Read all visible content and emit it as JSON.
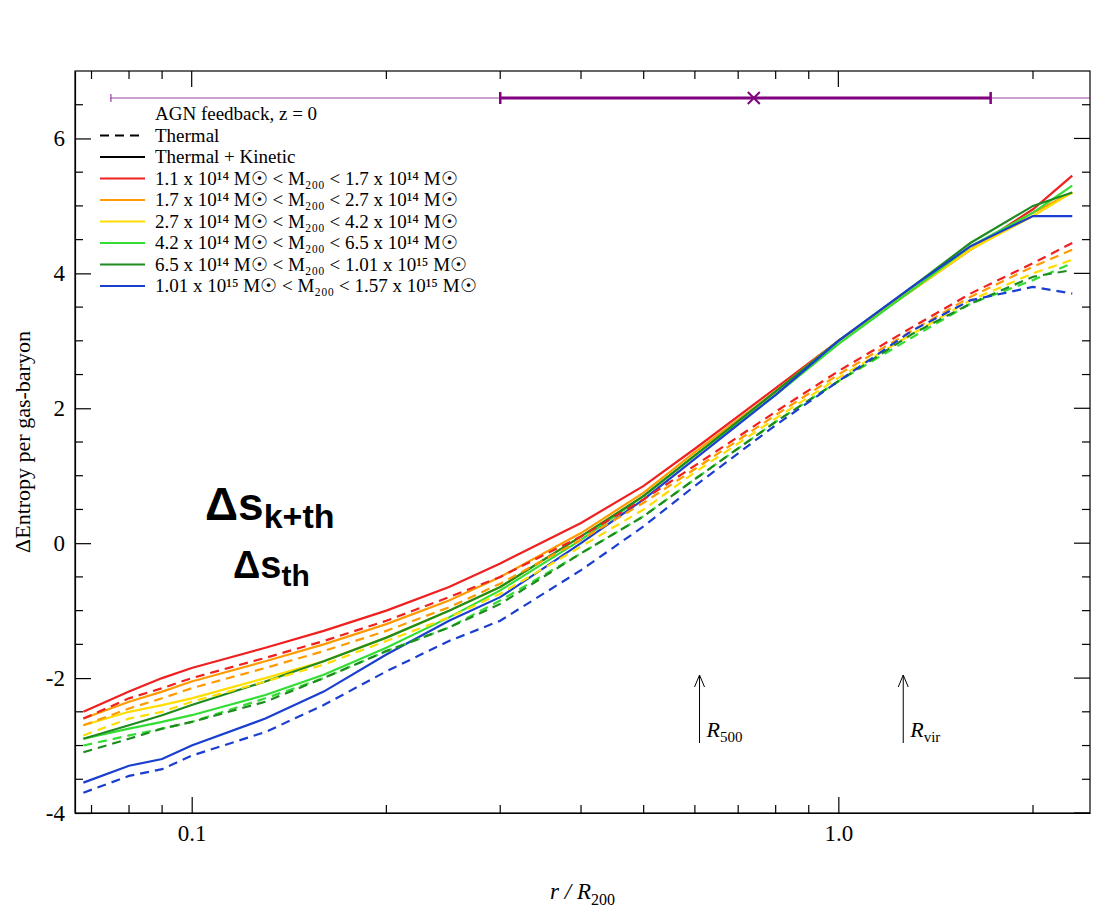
{
  "chart_data": {
    "type": "line",
    "log": "x",
    "legend": "upper left",
    "xlabel": {
      "text": "r / R",
      "sub": "200"
    },
    "ylabel": "ΔEntropy per gas-baryon",
    "legend_title": "AGN feedback, z = 0",
    "line_styles": [
      {
        "name": "Thermal",
        "line_style": "dashed"
      },
      {
        "name": "Thermal + Kinetic",
        "line_style": "solid"
      }
    ],
    "xlim": [
      0.066,
      2.45
    ],
    "ylim": [
      -4,
      7
    ],
    "xticks": [
      0.1,
      {
        "value": 1,
        "label": "1.0"
      }
    ],
    "yticks": [
      -4,
      -2,
      0,
      2,
      4,
      6
    ],
    "xminor_ticks": [
      0.07,
      0.08,
      0.09,
      0.2,
      0.3,
      0.4,
      0.5,
      0.6,
      0.7,
      0.8,
      0.9,
      2
    ],
    "yminor_ticks": [
      -3.5,
      -3,
      -2.5,
      -1.5,
      -1,
      -0.5,
      0.5,
      1,
      1.5,
      2.5,
      3,
      3.5,
      4.5,
      5,
      5.5,
      6.5
    ],
    "x": [
      0.068,
      0.08,
      0.09,
      0.1,
      0.13,
      0.16,
      0.2,
      0.25,
      0.3,
      0.4,
      0.5,
      0.6,
      0.8,
      1.0,
      1.3,
      1.6,
      2.0,
      2.3
    ],
    "series": [
      {
        "name": "1.1 x 10¹⁴ M☉ < M₂₀₀ < 1.7 x 10¹⁴ M☉",
        "color": "#ee2020",
        "line_style": "solid",
        "values": [
          -2.5,
          -2.2,
          -2.0,
          -1.85,
          -1.55,
          -1.3,
          -1.0,
          -0.65,
          -0.3,
          0.3,
          0.85,
          1.4,
          2.3,
          3.0,
          3.75,
          4.35,
          4.95,
          5.45
        ]
      },
      {
        "name": "1.7 x 10¹⁴ M☉ < M₂₀₀ < 2.7 x 10¹⁴ M☉",
        "color": "#ff9a00",
        "line_style": "solid",
        "values": [
          -2.6,
          -2.35,
          -2.2,
          -2.05,
          -1.75,
          -1.5,
          -1.2,
          -0.85,
          -0.5,
          0.15,
          0.75,
          1.35,
          2.25,
          3.0,
          3.75,
          4.35,
          4.9,
          5.2
        ]
      },
      {
        "name": "2.7 x 10¹⁴ M☉ < M₂₀₀ < 4.2 x 10¹⁴ M☉",
        "color": "#ffdd00",
        "line_style": "solid",
        "values": [
          -2.7,
          -2.5,
          -2.4,
          -2.3,
          -2.0,
          -1.75,
          -1.4,
          -1.0,
          -0.65,
          0.1,
          0.7,
          1.3,
          2.25,
          3.0,
          3.75,
          4.35,
          4.85,
          5.2
        ]
      },
      {
        "name": "4.2 x 10¹⁴ M☉ < M₂₀₀ < 6.5 x 10¹⁴ M☉",
        "color": "#33dd33",
        "line_style": "solid",
        "values": [
          -2.9,
          -2.75,
          -2.65,
          -2.55,
          -2.25,
          -1.95,
          -1.55,
          -1.1,
          -0.7,
          0.05,
          0.7,
          1.3,
          2.2,
          2.95,
          3.75,
          4.4,
          4.9,
          5.3
        ]
      },
      {
        "name": "6.5 x 10¹⁴ M☉ < M₂₀₀ < 1.01 x 10¹⁵ M☉",
        "color": "#1f8a1f",
        "line_style": "solid",
        "values": [
          -2.9,
          -2.7,
          -2.55,
          -2.4,
          -2.05,
          -1.75,
          -1.4,
          -1.0,
          -0.65,
          0.1,
          0.7,
          1.3,
          2.25,
          3.0,
          3.8,
          4.45,
          5.0,
          5.2
        ]
      },
      {
        "name": "1.01 x 10¹⁵ M☉ < M₂₀₀ < 1.57 x 10¹⁵ M☉",
        "color": "#1a3fd0",
        "line_style": "solid",
        "values": [
          -3.55,
          -3.3,
          -3.2,
          -3.0,
          -2.6,
          -2.2,
          -1.65,
          -1.15,
          -0.8,
          0.0,
          0.65,
          1.25,
          2.2,
          3.0,
          3.8,
          4.4,
          4.85,
          4.85
        ]
      },
      {
        "name": "1.1 x 10¹⁴ M☉ < M₂₀₀ < 1.7 x 10¹⁴ M☉",
        "color": "#ee2020",
        "line_style": "dashed",
        "values": [
          -2.6,
          -2.3,
          -2.15,
          -2.0,
          -1.7,
          -1.45,
          -1.15,
          -0.8,
          -0.5,
          0.1,
          0.65,
          1.15,
          1.95,
          2.55,
          3.2,
          3.7,
          4.15,
          4.45
        ]
      },
      {
        "name": "1.7 x 10¹⁴ M☉ < M₂₀₀ < 2.7 x 10¹⁴ M☉",
        "color": "#ff9a00",
        "line_style": "dashed",
        "values": [
          -2.7,
          -2.45,
          -2.3,
          -2.15,
          -1.85,
          -1.6,
          -1.3,
          -0.95,
          -0.6,
          0.05,
          0.6,
          1.1,
          1.9,
          2.5,
          3.15,
          3.65,
          4.1,
          4.35
        ]
      },
      {
        "name": "2.7 x 10¹⁴ M☉ < M₂₀₀ < 4.2 x 10¹⁴ M☉",
        "color": "#ffdd00",
        "line_style": "dashed",
        "values": [
          -2.85,
          -2.6,
          -2.5,
          -2.35,
          -2.05,
          -1.8,
          -1.45,
          -1.1,
          -0.75,
          -0.05,
          0.5,
          1.05,
          1.85,
          2.45,
          3.1,
          3.6,
          4.0,
          4.2
        ]
      },
      {
        "name": "4.2 x 10¹⁴ M☉ < M₂₀₀ < 6.5 x 10¹⁴ M☉",
        "color": "#33dd33",
        "line_style": "dashed",
        "values": [
          -3.0,
          -2.85,
          -2.75,
          -2.65,
          -2.3,
          -2.0,
          -1.6,
          -1.25,
          -0.85,
          -0.15,
          0.4,
          0.95,
          1.8,
          2.4,
          3.05,
          3.55,
          3.9,
          4.15
        ]
      },
      {
        "name": "6.5 x 10¹⁴ M☉ < M₂₀₀ < 1.01 x 10¹⁵ M☉",
        "color": "#1f8a1f",
        "line_style": "dashed",
        "values": [
          -3.1,
          -2.9,
          -2.75,
          -2.65,
          -2.35,
          -2.0,
          -1.6,
          -1.25,
          -0.9,
          -0.15,
          0.4,
          0.95,
          1.8,
          2.4,
          3.1,
          3.55,
          3.95,
          4.05
        ]
      },
      {
        "name": "1.01 x 10¹⁵ M☉ < M₂₀₀ < 1.57 x 10¹⁵ M☉",
        "color": "#1a3fd0",
        "line_style": "dashed",
        "values": [
          -3.7,
          -3.45,
          -3.35,
          -3.15,
          -2.8,
          -2.4,
          -1.9,
          -1.45,
          -1.15,
          -0.4,
          0.25,
          0.85,
          1.75,
          2.4,
          3.15,
          3.6,
          3.8,
          3.7
        ]
      }
    ],
    "range_bar": {
      "y": 6.6,
      "center": 0.74,
      "inner": [
        0.3,
        1.72
      ],
      "outer": [
        0.075,
        2.5
      ],
      "color": "#800080"
    },
    "annotations": [
      {
        "text": "Δs",
        "sub": "k+th"
      },
      {
        "text": "Δs",
        "sub": "th"
      }
    ],
    "markers": [
      {
        "x": 0.61,
        "text": "R",
        "sub": "500"
      },
      {
        "x": 1.26,
        "text": "R",
        "sub": "vir"
      }
    ]
  }
}
